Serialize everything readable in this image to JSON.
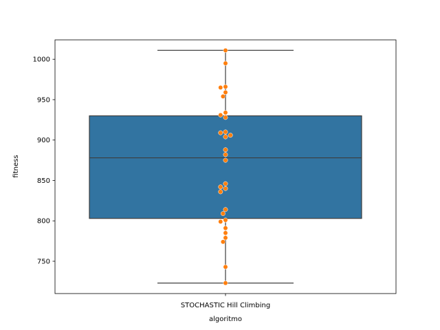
{
  "chart_data": {
    "type": "box",
    "categories": [
      "STOCHASTIC Hill Climbing"
    ],
    "xlabel": "algoritmo",
    "ylabel": "fitness",
    "ylim": [
      710,
      1024
    ],
    "yticks": [
      750,
      800,
      850,
      900,
      950,
      1000
    ],
    "ytick_labels": [
      "750",
      "800",
      "850",
      "900",
      "950",
      "1000"
    ],
    "grid": false,
    "box": {
      "whisker_low": 723,
      "q1": 803,
      "median": 878,
      "q3": 930,
      "whisker_high": 1011
    },
    "points": [
      1011,
      995,
      966,
      965,
      959,
      954,
      934,
      931,
      928,
      910,
      909,
      906,
      904,
      888,
      882,
      875,
      846,
      842,
      840,
      836,
      814,
      809,
      801,
      799,
      791,
      785,
      779,
      774,
      743,
      723
    ],
    "colors": {
      "box_fill": "#3274a1",
      "box_edge": "#3d3d3d",
      "points": "#ff7f0e",
      "points_edge": "#ffffff"
    }
  }
}
